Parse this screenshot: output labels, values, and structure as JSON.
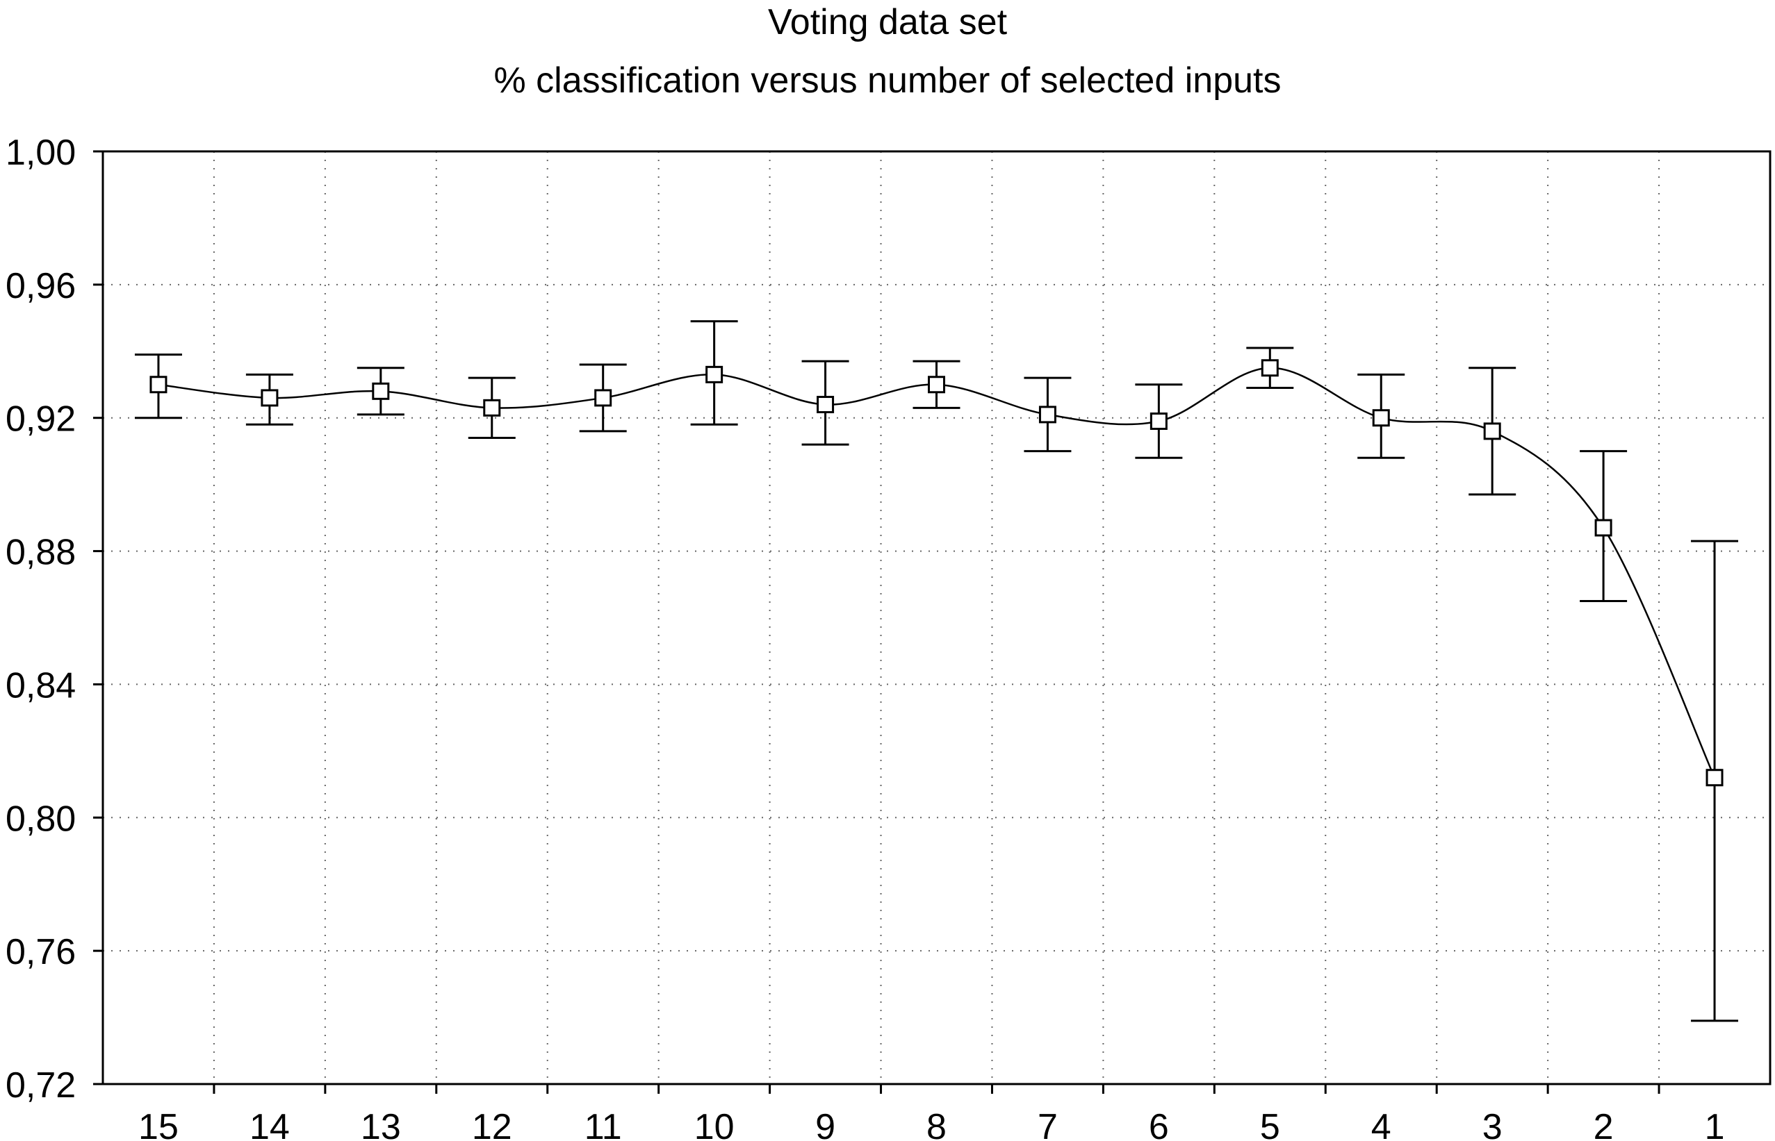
{
  "chart_data": {
    "type": "line",
    "title": "Voting data set",
    "subtitle": "% classification versus number of selected inputs",
    "xlabel": "",
    "ylabel": "",
    "categories": [
      "15",
      "14",
      "13",
      "12",
      "11",
      "10",
      "9",
      "8",
      "7",
      "6",
      "5",
      "4",
      "3",
      "2",
      "1"
    ],
    "series": [
      {
        "values": [
          0.93,
          0.926,
          0.928,
          0.923,
          0.926,
          0.933,
          0.924,
          0.93,
          0.921,
          0.919,
          0.935,
          0.92,
          0.916,
          0.887,
          0.812
        ],
        "error_low": [
          0.92,
          0.918,
          0.921,
          0.914,
          0.916,
          0.918,
          0.912,
          0.923,
          0.91,
          0.908,
          0.929,
          0.908,
          0.897,
          0.865,
          0.739
        ],
        "error_high": [
          0.939,
          0.933,
          0.935,
          0.932,
          0.936,
          0.949,
          0.937,
          0.937,
          0.932,
          0.93,
          0.941,
          0.933,
          0.935,
          0.91,
          0.883
        ],
        "marker": "open-square",
        "color": "#000000"
      }
    ],
    "ylim": [
      0.72,
      1.0
    ],
    "y_ticks": [
      "0,72",
      "0,76",
      "0,80",
      "0,84",
      "0,88",
      "0,92",
      "0,96",
      "1,00"
    ],
    "y_tick_values": [
      0.72,
      0.76,
      0.8,
      0.84,
      0.88,
      0.92,
      0.96,
      1.0
    ],
    "grid": true,
    "grid_style": "dotted",
    "legend": "none"
  }
}
